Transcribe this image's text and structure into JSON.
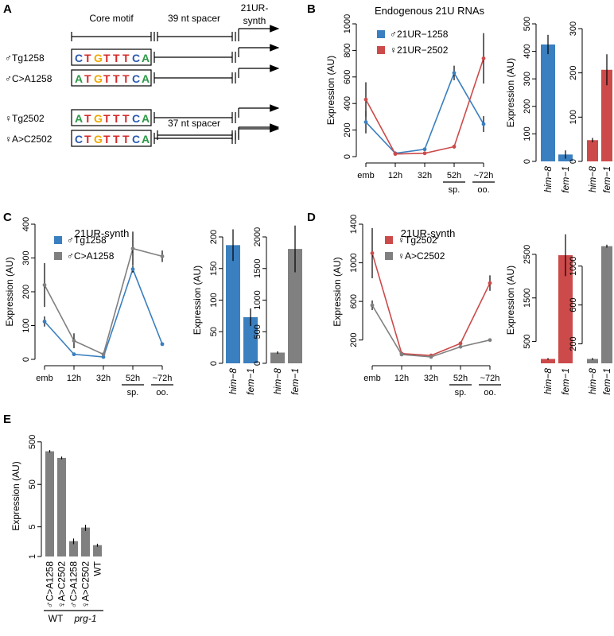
{
  "panel_labels": [
    "A",
    "B",
    "C",
    "D",
    "E"
  ],
  "colors": {
    "blue": "#3a7fbf",
    "red": "#cc4a4a",
    "gray": "#808080",
    "nA": "#2a9a45",
    "nC": "#2a5ab0",
    "nG": "#f0a800",
    "nT": "#d62828"
  },
  "schematic": {
    "headers": {
      "core": "Core motif",
      "spacer39": "39 nt spacer",
      "spacer37": "37 nt spacer",
      "synth": "21UR-synth"
    },
    "rows": [
      {
        "label": "♂Tg1258",
        "motif": "CTGTTTCA"
      },
      {
        "label": "♂C>A1258",
        "motif": "ATGTTTCA"
      },
      {
        "label": "♀Tg2502",
        "motif": "ATGTTTCA"
      },
      {
        "label": "♀A>C2502",
        "motif": "CTGTTTCA"
      }
    ]
  },
  "chart_data": [
    {
      "id": "B-line",
      "type": "line",
      "title": "Endogenous 21U RNAs",
      "ylabel": "Expression (AU)",
      "ylim": [
        0,
        1000
      ],
      "yticks": [
        0,
        200,
        400,
        600,
        800,
        1000
      ],
      "categories": [
        "emb",
        "12h",
        "32h",
        "52h",
        "~72h"
      ],
      "stage_labels": [
        {
          "after": "52h",
          "text": "sp."
        },
        {
          "after": "~72h",
          "text": "oo."
        }
      ],
      "series": [
        {
          "name": "♂21UR−1258",
          "color": "#3a7fbf",
          "values": [
            260,
            25,
            55,
            630,
            245
          ],
          "err": [
            85,
            12,
            10,
            55,
            60
          ]
        },
        {
          "name": "♀21UR−2502",
          "color": "#cc4a4a",
          "values": [
            430,
            20,
            25,
            75,
            740
          ],
          "err": [
            130,
            10,
            8,
            15,
            190
          ]
        }
      ]
    },
    {
      "id": "B-bar1",
      "type": "bar",
      "ylabel": "Expression (AU)",
      "ylim": [
        0,
        500
      ],
      "yticks": [
        0,
        100,
        200,
        300,
        400,
        500
      ],
      "categories": [
        "him−8",
        "fem−1"
      ],
      "color": "#3a7fbf",
      "values": [
        425,
        25
      ],
      "err": [
        35,
        15
      ]
    },
    {
      "id": "B-bar2",
      "type": "bar",
      "ylim": [
        0,
        300
      ],
      "yticks": [
        0,
        100,
        200,
        300
      ],
      "categories": [
        "him−8",
        "fem−1"
      ],
      "color": "#cc4a4a",
      "values": [
        48,
        207
      ],
      "err": [
        5,
        35
      ]
    },
    {
      "id": "C-line",
      "type": "line",
      "title": "21UR-synth",
      "ylabel": "Expression (AU)",
      "ylim": [
        0,
        400
      ],
      "yticks": [
        0,
        100,
        200,
        300,
        400
      ],
      "categories": [
        "emb",
        "12h",
        "32h",
        "52h",
        "~72h"
      ],
      "stage_labels": [
        {
          "after": "52h",
          "text": "sp."
        },
        {
          "after": "~72h",
          "text": "oo."
        }
      ],
      "series": [
        {
          "name": "♂Tg1258",
          "color": "#3a7fbf",
          "values": [
            112,
            15,
            7,
            267,
            45
          ],
          "err": [
            15,
            4,
            3,
            10,
            5
          ]
        },
        {
          "name": "♂C>A1258",
          "color": "#808080",
          "values": [
            220,
            55,
            15,
            328,
            305
          ],
          "err": [
            65,
            22,
            5,
            50,
            17
          ]
        }
      ]
    },
    {
      "id": "C-bar1",
      "type": "bar",
      "ylabel": "Expression (AU)",
      "ylim": [
        0,
        200
      ],
      "yticks": [
        0,
        50,
        100,
        150,
        200
      ],
      "categories": [
        "him−8",
        "fem−1"
      ],
      "color": "#3a7fbf",
      "values": [
        187,
        73
      ],
      "err": [
        25,
        14
      ]
    },
    {
      "id": "C-bar2",
      "type": "bar",
      "ylim": [
        0,
        2000
      ],
      "yticks": [
        0,
        500,
        1000,
        1500,
        2000
      ],
      "categories": [
        "him−8",
        "fem−1"
      ],
      "color": "#808080",
      "values": [
        170,
        1810
      ],
      "err": [
        20,
        370
      ]
    },
    {
      "id": "D-line",
      "type": "line",
      "title": "21UR-synth",
      "ylabel": "Expression (AU)",
      "ylim": [
        0,
        1400
      ],
      "yticks": [
        200,
        600,
        1000,
        1400
      ],
      "categories": [
        "emb",
        "12h",
        "32h",
        "52h",
        "~72h"
      ],
      "stage_labels": [
        {
          "after": "52h",
          "text": "sp."
        },
        {
          "after": "~72h",
          "text": "oo."
        }
      ],
      "series": [
        {
          "name": "♀Tg2502",
          "color": "#cc4a4a",
          "values": [
            1100,
            60,
            40,
            165,
            790
          ],
          "err": [
            260,
            10,
            10,
            20,
            80
          ]
        },
        {
          "name": "♀A>C2502",
          "color": "#808080",
          "values": [
            560,
            50,
            25,
            130,
            200
          ],
          "err": [
            50,
            8,
            5,
            15,
            15
          ]
        }
      ]
    },
    {
      "id": "D-bar1",
      "type": "bar",
      "ylabel": "Expression (AU)",
      "ylim": [
        0,
        2900
      ],
      "yticks": [
        500,
        1500,
        2500
      ],
      "categories": [
        "him−8",
        "fem−1"
      ],
      "color": "#cc4a4a",
      "values": [
        100,
        2480
      ],
      "err": [
        20,
        480
      ]
    },
    {
      "id": "D-bar2",
      "type": "bar",
      "ylim": [
        0,
        1300
      ],
      "yticks": [
        200,
        600,
        1000
      ],
      "categories": [
        "him−8",
        "fem−1"
      ],
      "color": "#808080",
      "values": [
        45,
        1205
      ],
      "err": [
        10,
        15
      ]
    },
    {
      "id": "E-bar",
      "type": "bar",
      "log": true,
      "ylabel": "Expression (AU)",
      "ylim": [
        1,
        700
      ],
      "yticks": [
        1,
        5,
        50,
        500
      ],
      "categories": [
        "♂C>A1258",
        "♀A>C2502",
        "♂C>A1258",
        "♀A>C2502",
        "WT"
      ],
      "groups": [
        {
          "label": "WT",
          "from": 0,
          "to": 1
        },
        {
          "label": "prg-1",
          "from": 2,
          "to": 4
        }
      ],
      "color": "#808080",
      "values": [
        300,
        210,
        2.3,
        4.8,
        1.85
      ],
      "err": [
        20,
        15,
        0.35,
        0.8,
        0.15
      ]
    }
  ]
}
